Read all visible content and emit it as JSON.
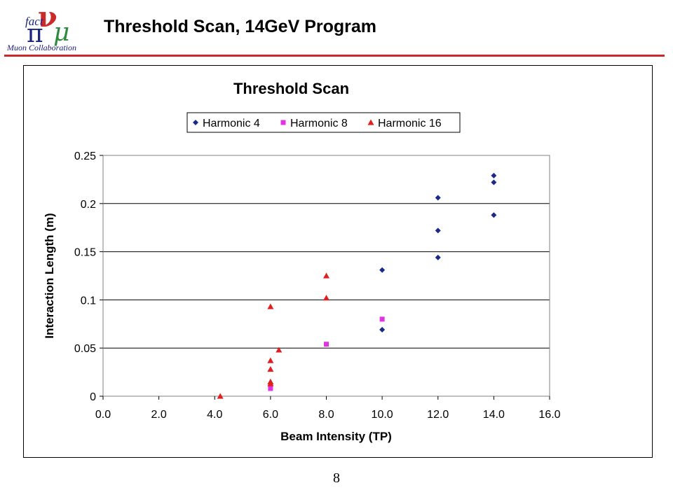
{
  "slide": {
    "title": "Threshold Scan, 14GeV Program",
    "page_number": "8",
    "logo_text": {
      "fact": "fact",
      "nu": "ν",
      "pi": "π",
      "mu": "μ",
      "collab": "Muon Collaboration"
    },
    "header_rule_color": "#cc2a2a"
  },
  "chart_data": {
    "type": "scatter",
    "title": "Threshold Scan",
    "xlabel": "Beam Intensity (TP)",
    "ylabel": "Interaction Length (m)",
    "xlim": [
      0,
      16
    ],
    "ylim": [
      0,
      0.25
    ],
    "xticks": [
      0,
      2,
      4,
      6,
      8,
      10,
      12,
      14,
      16
    ],
    "xtick_labels": [
      "0.0",
      "2.0",
      "4.0",
      "6.0",
      "8.0",
      "10.0",
      "12.0",
      "14.0",
      "16.0"
    ],
    "yticks": [
      0,
      0.05,
      0.1,
      0.15,
      0.2,
      0.25
    ],
    "ytick_labels": [
      "0",
      "0.05",
      "0.1",
      "0.15",
      "0.2",
      "0.25"
    ],
    "grid": "horizontal major gridlines",
    "legend_position": "top-center",
    "series": [
      {
        "name": "Harmonic 4",
        "marker": "diamond",
        "color": "#1a2a8c",
        "points": [
          [
            10,
            0.131
          ],
          [
            10,
            0.069
          ],
          [
            12,
            0.206
          ],
          [
            12,
            0.172
          ],
          [
            12,
            0.144
          ],
          [
            14,
            0.229
          ],
          [
            14,
            0.222
          ],
          [
            14,
            0.188
          ]
        ]
      },
      {
        "name": "Harmonic 8",
        "marker": "square",
        "color": "#e233e2",
        "points": [
          [
            6,
            0.008
          ],
          [
            8,
            0.054
          ],
          [
            10,
            0.08
          ]
        ]
      },
      {
        "name": "Harmonic 16",
        "marker": "triangle",
        "color": "#e02020",
        "points": [
          [
            4.2,
            0.0
          ],
          [
            6,
            0.093
          ],
          [
            6,
            0.037
          ],
          [
            6,
            0.028
          ],
          [
            6,
            0.015
          ],
          [
            6,
            0.013
          ],
          [
            6.3,
            0.048
          ],
          [
            8,
            0.125
          ],
          [
            8,
            0.102
          ]
        ]
      }
    ]
  }
}
